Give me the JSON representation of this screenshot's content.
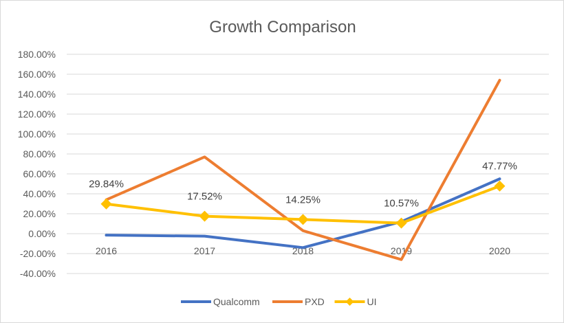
{
  "chart_data": {
    "type": "line",
    "title": "Growth Comparison",
    "categories": [
      "2016",
      "2017",
      "2018",
      "2019",
      "2020"
    ],
    "ylim": [
      -40,
      180
    ],
    "yticks": [
      -40,
      -20,
      0,
      20,
      40,
      60,
      80,
      100,
      120,
      140,
      160,
      180
    ],
    "ytick_labels": [
      "-40.00%",
      "-20.00%",
      "0.00%",
      "20.00%",
      "40.00%",
      "60.00%",
      "80.00%",
      "100.00%",
      "120.00%",
      "140.00%",
      "160.00%",
      "180.00%"
    ],
    "grid": true,
    "legend": "bottom",
    "series": [
      {
        "name": "Qualcomm",
        "color": "#4472C4",
        "values": [
          -1.5,
          -2.5,
          -14,
          12,
          55
        ],
        "marker": "none"
      },
      {
        "name": "PXD",
        "color": "#ED7D31",
        "values": [
          34,
          77,
          3,
          -26,
          154
        ],
        "marker": "none"
      },
      {
        "name": "UI",
        "color": "#FFC000",
        "values": [
          29.84,
          17.52,
          14.25,
          10.57,
          47.77
        ],
        "marker": "diamond",
        "data_labels": [
          "29.84%",
          "17.52%",
          "14.25%",
          "10.57%",
          "47.77%"
        ]
      }
    ]
  }
}
